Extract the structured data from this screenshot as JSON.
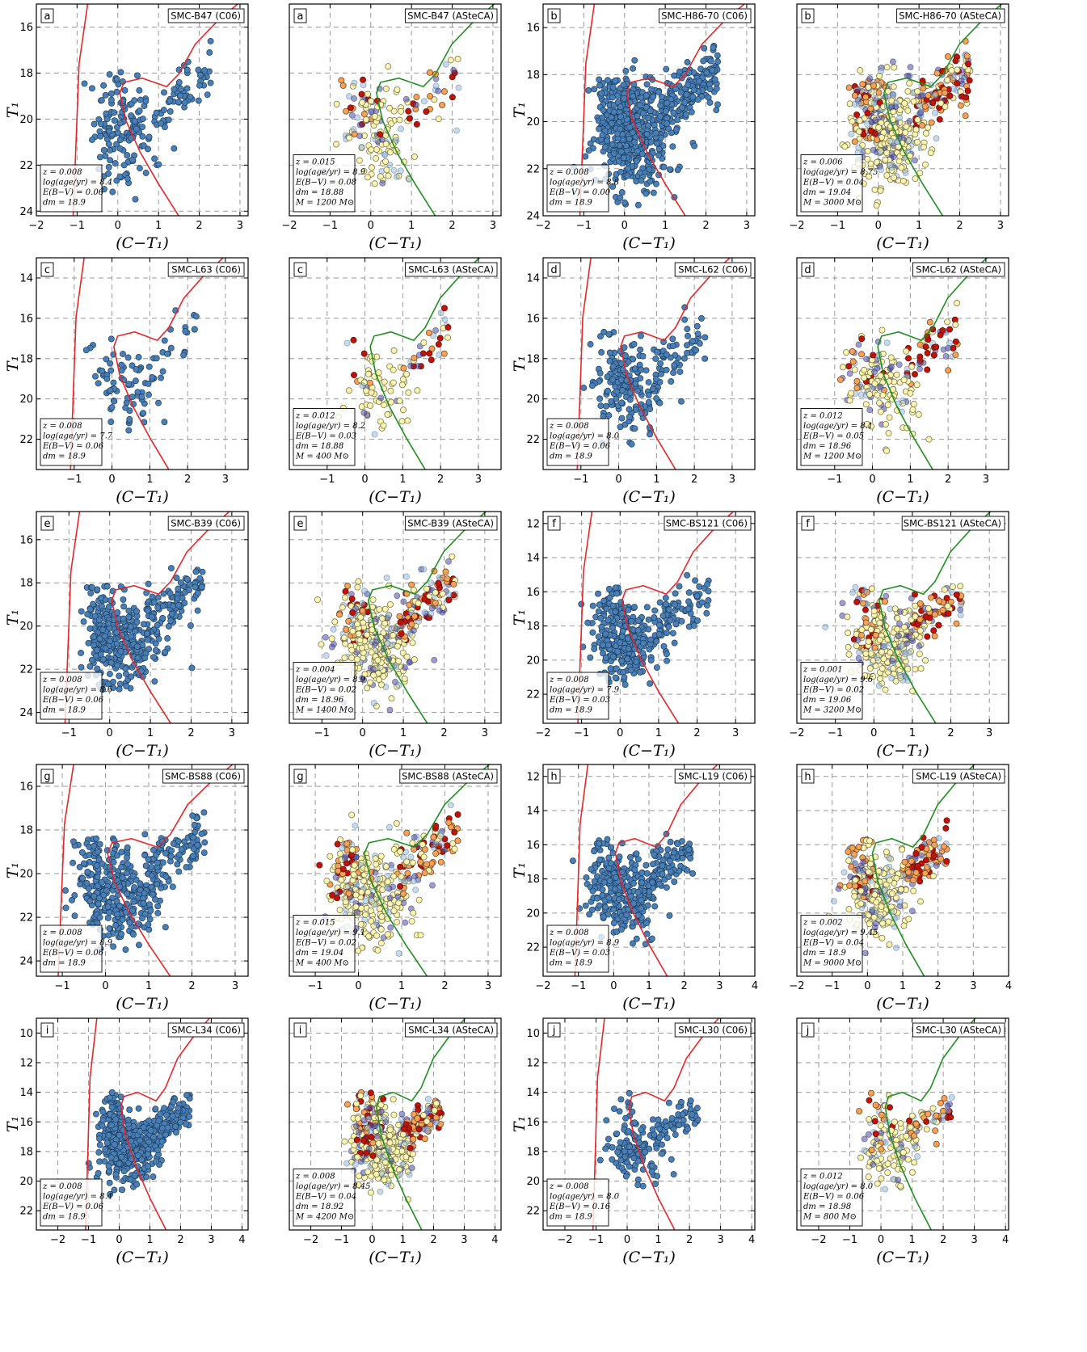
{
  "chart_data": [
    {
      "panel": "a",
      "title": "SMC-B47 (C06)",
      "type": "scatter",
      "style": "obs",
      "xlim": [
        -2,
        3.2
      ],
      "ylim": [
        24.2,
        15
      ],
      "xticks": [
        -2,
        -1,
        0,
        1,
        2,
        3
      ],
      "yticks": [
        16,
        18,
        20,
        22,
        24
      ],
      "xlabel": "(C−T₁)",
      "ylabel": "T₁",
      "info": [
        "z = 0.008",
        "log(age/yr) = 8.4",
        "E(B−V) = 0.06",
        "dm = 18.9"
      ],
      "seed": 11,
      "n": 200
    },
    {
      "panel": "a",
      "title": "SMC-B47 (ASteCA)",
      "type": "scatter",
      "style": "memb",
      "xlim": [
        -2,
        3.2
      ],
      "ylim": [
        24.2,
        15
      ],
      "xticks": [
        -2,
        -1,
        0,
        1,
        2,
        3
      ],
      "yticks": [],
      "xlabel": "(C−T₁)",
      "ylabel": "",
      "info": [
        "z = 0.015",
        "log(age/yr) = 8.9",
        "E(B−V) = 0.08",
        "dm = 18.88",
        "M = 1200 M⊙"
      ],
      "seed": 12,
      "n": 170
    },
    {
      "panel": "b",
      "title": "SMC-H86-70 (C06)",
      "type": "scatter",
      "style": "obs",
      "xlim": [
        -2,
        3.2
      ],
      "ylim": [
        24,
        15
      ],
      "xticks": [
        -2,
        -1,
        0,
        1,
        2,
        3
      ],
      "yticks": [
        16,
        18,
        20,
        22,
        24
      ],
      "xlabel": "(C−T₁)",
      "ylabel": "T₁",
      "info": [
        "z = 0.008",
        "log(age/yr) = 8.8",
        "E(B−V) = 0.00",
        "dm = 18.9"
      ],
      "seed": 13,
      "n": 700
    },
    {
      "panel": "b",
      "title": "SMC-H86-70 (ASteCA)",
      "type": "scatter",
      "style": "memb",
      "xlim": [
        -2,
        3.2
      ],
      "ylim": [
        24,
        15
      ],
      "xticks": [
        -2,
        -1,
        0,
        1,
        2,
        3
      ],
      "yticks": [],
      "xlabel": "(C−T₁)",
      "ylabel": "",
      "info": [
        "z = 0.006",
        "log(age/yr) = 8.75",
        "E(B−V) = 0.04",
        "dm = 19.04",
        "M = 3000 M⊙"
      ],
      "seed": 14,
      "n": 520
    },
    {
      "panel": "c",
      "title": "SMC-L63 (C06)",
      "type": "scatter",
      "style": "obs",
      "xlim": [
        -2,
        3.6
      ],
      "ylim": [
        23.5,
        13
      ],
      "xticks": [
        -1,
        0,
        1,
        2,
        3
      ],
      "yticks": [
        14,
        16,
        18,
        20,
        22
      ],
      "xlabel": "(C−T₁)",
      "ylabel": "T₁",
      "info": [
        "z = 0.008",
        "log(age/yr) = 7.7",
        "E(B−V) = 0.06",
        "dm = 18.9"
      ],
      "seed": 21,
      "n": 95
    },
    {
      "panel": "c",
      "title": "SMC-L63 (ASteCA)",
      "type": "scatter",
      "style": "memb",
      "xlim": [
        -2,
        3.6
      ],
      "ylim": [
        23.5,
        13
      ],
      "xticks": [
        -1,
        0,
        1,
        2,
        3
      ],
      "yticks": [],
      "xlabel": "(C−T₁)",
      "ylabel": "",
      "info": [
        "z = 0.012",
        "log(age/yr) = 8.2",
        "E(B−V) = 0.03",
        "dm = 18.88",
        "M = 400 M⊙"
      ],
      "seed": 22,
      "n": 100
    },
    {
      "panel": "d",
      "title": "SMC-L62 (C06)",
      "type": "scatter",
      "style": "obs",
      "xlim": [
        -2,
        3.6
      ],
      "ylim": [
        23.5,
        13
      ],
      "xticks": [
        -1,
        0,
        1,
        2,
        3
      ],
      "yticks": [
        14,
        16,
        18,
        20,
        22
      ],
      "xlabel": "(C−T₁)",
      "ylabel": "T₁",
      "info": [
        "z = 0.008",
        "log(age/yr) = 8.0",
        "E(B−V) = 0.06",
        "dm = 18.9"
      ],
      "seed": 23,
      "n": 220
    },
    {
      "panel": "d",
      "title": "SMC-L62 (ASteCA)",
      "type": "scatter",
      "style": "memb",
      "xlim": [
        -2,
        3.6
      ],
      "ylim": [
        23.5,
        13
      ],
      "xticks": [
        -1,
        0,
        1,
        2,
        3
      ],
      "yticks": [],
      "xlabel": "(C−T₁)",
      "ylabel": "",
      "info": [
        "z = 0.012",
        "log(age/yr) = 8.1",
        "E(B−V) = 0.05",
        "dm = 18.96",
        "M = 1200 M⊙"
      ],
      "seed": 24,
      "n": 200
    },
    {
      "panel": "e",
      "title": "SMC-B39 (C06)",
      "type": "scatter",
      "style": "obs",
      "xlim": [
        -1.8,
        3.4
      ],
      "ylim": [
        24.5,
        14.7
      ],
      "xticks": [
        -1,
        0,
        1,
        2,
        3
      ],
      "yticks": [
        16,
        18,
        20,
        22,
        24
      ],
      "xlabel": "(C−T₁)",
      "ylabel": "T₁",
      "info": [
        "z = 0.008",
        "log(age/yr) = 8.6",
        "E(B−V) = 0.06",
        "dm = 18.9"
      ],
      "seed": 31,
      "n": 420
    },
    {
      "panel": "e",
      "title": "SMC-B39 (ASteCA)",
      "type": "scatter",
      "style": "memb",
      "xlim": [
        -1.8,
        3.4
      ],
      "ylim": [
        24.5,
        14.7
      ],
      "xticks": [
        -1,
        0,
        1,
        2,
        3
      ],
      "yticks": [],
      "xlabel": "(C−T₁)",
      "ylabel": "",
      "info": [
        "z = 0.004",
        "log(age/yr) = 8.9",
        "E(B−V) = 0.02",
        "dm = 18.96",
        "M = 1400 M⊙"
      ],
      "seed": 32,
      "n": 400
    },
    {
      "panel": "f",
      "title": "SMC-BS121 (C06)",
      "type": "scatter",
      "style": "obs",
      "xlim": [
        -2,
        3.5
      ],
      "ylim": [
        23.7,
        11.3
      ],
      "xticks": [
        -2,
        -1,
        0,
        1,
        2,
        3
      ],
      "yticks": [
        12,
        14,
        16,
        18,
        20,
        22
      ],
      "xlabel": "(C−T₁)",
      "ylabel": "T₁",
      "info": [
        "z = 0.008",
        "log(age/yr) = 7.9",
        "E(B−V) = 0.03",
        "dm = 18.9"
      ],
      "seed": 33,
      "n": 360
    },
    {
      "panel": "f",
      "title": "SMC-BS121 (ASteCA)",
      "type": "scatter",
      "style": "memb",
      "xlim": [
        -2,
        3.5
      ],
      "ylim": [
        23.7,
        11.3
      ],
      "xticks": [
        -2,
        -1,
        0,
        1,
        2,
        3
      ],
      "yticks": [],
      "xlabel": "(C−T₁)",
      "ylabel": "",
      "info": [
        "z = 0.001",
        "log(age/yr) = 9.6",
        "E(B−V) = 0.02",
        "dm = 19.06",
        "M = 3200 M⊙"
      ],
      "seed": 34,
      "n": 360
    },
    {
      "panel": "g",
      "title": "SMC-BS88 (C06)",
      "type": "scatter",
      "style": "obs",
      "xlim": [
        -1.6,
        3.3
      ],
      "ylim": [
        24.7,
        15
      ],
      "xticks": [
        -1,
        0,
        1,
        2,
        3
      ],
      "yticks": [
        16,
        18,
        20,
        22,
        24
      ],
      "xlabel": "(C−T₁)",
      "ylabel": "T₁",
      "info": [
        "z = 0.008",
        "log(age/yr) = 8.9",
        "E(B−V) = 0.06",
        "dm = 18.9"
      ],
      "seed": 41,
      "n": 420
    },
    {
      "panel": "g",
      "title": "SMC-BS88 (ASteCA)",
      "type": "scatter",
      "style": "memb",
      "xlim": [
        -1.6,
        3.3
      ],
      "ylim": [
        24.7,
        15
      ],
      "xticks": [
        -1,
        0,
        1,
        2,
        3
      ],
      "yticks": [],
      "xlabel": "(C−T₁)",
      "ylabel": "",
      "info": [
        "z = 0.015",
        "log(age/yr) = 9.1",
        "E(B−V) = 0.02",
        "dm = 19.04",
        "M = 400 M⊙"
      ],
      "seed": 42,
      "n": 400
    },
    {
      "panel": "h",
      "title": "SMC-L19 (C06)",
      "type": "scatter",
      "style": "obs",
      "xlim": [
        -2,
        4
      ],
      "ylim": [
        23.7,
        11.3
      ],
      "xticks": [
        -2,
        -1,
        0,
        1,
        2,
        3,
        4
      ],
      "yticks": [
        12,
        14,
        16,
        18,
        20,
        22
      ],
      "xlabel": "(C−T₁)",
      "ylabel": "T₁",
      "info": [
        "z = 0.008",
        "log(age/yr) = 8.9",
        "E(B−V) = 0.03",
        "dm = 18.9"
      ],
      "seed": 43,
      "n": 380
    },
    {
      "panel": "h",
      "title": "SMC-L19 (ASteCA)",
      "type": "scatter",
      "style": "memb",
      "xlim": [
        -2,
        4
      ],
      "ylim": [
        23.7,
        11.3
      ],
      "xticks": [
        -2,
        -1,
        0,
        1,
        2,
        3,
        4
      ],
      "yticks": [],
      "xlabel": "(C−T₁)",
      "ylabel": "",
      "info": [
        "z = 0.002",
        "log(age/yr) = 9.45",
        "E(B−V) = 0.04",
        "dm = 18.9",
        "M = 9000 M⊙"
      ],
      "seed": 44,
      "n": 360
    },
    {
      "panel": "i",
      "title": "SMC-L34 (C06)",
      "type": "scatter",
      "style": "obs",
      "xlim": [
        -2.7,
        4.2
      ],
      "ylim": [
        23.3,
        9
      ],
      "xticks": [
        -2,
        -1,
        0,
        1,
        2,
        3,
        4
      ],
      "yticks": [
        10,
        12,
        14,
        16,
        18,
        20,
        22
      ],
      "xlabel": "(C−T₁)",
      "ylabel": "T₁",
      "info": [
        "z = 0.008",
        "log(age/yr) = 8.4",
        "E(B−V) = 0.06",
        "dm = 18.9"
      ],
      "seed": 51,
      "n": 520
    },
    {
      "panel": "i",
      "title": "SMC-L34 (ASteCA)",
      "type": "scatter",
      "style": "memb",
      "xlim": [
        -2.7,
        4.2
      ],
      "ylim": [
        23.3,
        9
      ],
      "xticks": [
        -2,
        -1,
        0,
        1,
        2,
        3,
        4
      ],
      "yticks": [],
      "xlabel": "(C−T₁)",
      "ylabel": "",
      "info": [
        "z = 0.008",
        "log(age/yr) = 8.45",
        "E(B−V) = 0.04",
        "dm = 18.92",
        "M = 4200 M⊙"
      ],
      "seed": 52,
      "n": 500
    },
    {
      "panel": "j",
      "title": "SMC-L30 (C06)",
      "type": "scatter",
      "style": "obs",
      "xlim": [
        -2.7,
        4.1
      ],
      "ylim": [
        23.3,
        9
      ],
      "xticks": [
        -2,
        -1,
        0,
        1,
        2,
        3,
        4
      ],
      "yticks": [
        10,
        12,
        14,
        16,
        18,
        20,
        22
      ],
      "xlabel": "(C−T₁)",
      "ylabel": "T₁",
      "info": [
        "z = 0.008",
        "log(age/yr) = 8.0",
        "E(B−V) = 0.16",
        "dm = 18.9"
      ],
      "seed": 53,
      "n": 170
    },
    {
      "panel": "j",
      "title": "SMC-L30 (ASteCA)",
      "type": "scatter",
      "style": "memb",
      "xlim": [
        -2.7,
        4.1
      ],
      "ylim": [
        23.3,
        9
      ],
      "xticks": [
        -2,
        -1,
        0,
        1,
        2,
        3,
        4
      ],
      "yticks": [],
      "xlabel": "(C−T₁)",
      "ylabel": "",
      "info": [
        "z = 0.012",
        "log(age/yr) = 8.0",
        "E(B−V) = 0.06",
        "dm = 18.98",
        "M = 800 M⊙"
      ],
      "seed": 54,
      "n": 180
    }
  ],
  "colors": {
    "obs_fill": "#4a7fb5",
    "obs_stroke": "#1d3d5e",
    "isochrone_obs": "#e8262a",
    "isochrone_fit": "#1f8f1f",
    "memb_high": "#c0140a",
    "memb_mid": "#f4a259",
    "memb_low": "#fbf3b0",
    "memb_bg": "#8fb3d9",
    "memb_deep": "#4a4ba6"
  }
}
